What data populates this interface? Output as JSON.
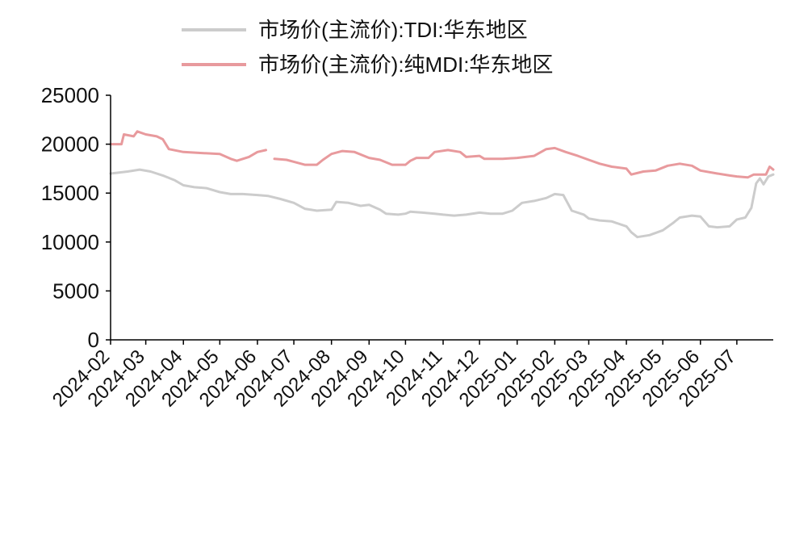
{
  "chart_data": {
    "type": "line",
    "title": "",
    "xlabel": "",
    "ylabel": "",
    "ylim": [
      0,
      25000
    ],
    "yticks": [
      0,
      5000,
      10000,
      15000,
      20000,
      25000
    ],
    "xlim": [
      "2024-02-01",
      "2025-07-31"
    ],
    "xticks": [
      "2024-02",
      "2024-03",
      "2024-04",
      "2024-05",
      "2024-06",
      "2024-07",
      "2024-08",
      "2024-09",
      "2024-10",
      "2024-11",
      "2024-12",
      "2025-01",
      "2025-02",
      "2025-03",
      "2025-04",
      "2025-05",
      "2025-06",
      "2025-07"
    ],
    "grid": false,
    "legend_position": "top-center",
    "series": [
      {
        "name": "市场价(主流价):TDI:华东地区",
        "color": "#cccccc",
        "points": [
          [
            "2024-02-01",
            17000
          ],
          [
            "2024-02-15",
            17200
          ],
          [
            "2024-02-25",
            17400
          ],
          [
            "2024-03-05",
            17200
          ],
          [
            "2024-03-15",
            16800
          ],
          [
            "2024-03-25",
            16300
          ],
          [
            "2024-04-01",
            15800
          ],
          [
            "2024-04-10",
            15600
          ],
          [
            "2024-04-20",
            15500
          ],
          [
            "2024-05-01",
            15100
          ],
          [
            "2024-05-10",
            14900
          ],
          [
            "2024-05-20",
            14900
          ],
          [
            "2024-06-01",
            14800
          ],
          [
            "2024-06-10",
            14700
          ],
          [
            "2024-06-20",
            14400
          ],
          [
            "2024-07-01",
            14000
          ],
          [
            "2024-07-10",
            13400
          ],
          [
            "2024-07-20",
            13200
          ],
          [
            "2024-08-01",
            13300
          ],
          [
            "2024-08-05",
            14100
          ],
          [
            "2024-08-15",
            14000
          ],
          [
            "2024-08-25",
            13700
          ],
          [
            "2024-09-01",
            13800
          ],
          [
            "2024-09-10",
            13300
          ],
          [
            "2024-09-15",
            12900
          ],
          [
            "2024-09-25",
            12800
          ],
          [
            "2024-10-01",
            12900
          ],
          [
            "2024-10-05",
            13100
          ],
          [
            "2024-10-15",
            13000
          ],
          [
            "2024-10-25",
            12900
          ],
          [
            "2024-11-01",
            12800
          ],
          [
            "2024-11-10",
            12700
          ],
          [
            "2024-11-20",
            12800
          ],
          [
            "2024-12-01",
            13000
          ],
          [
            "2024-12-10",
            12900
          ],
          [
            "2024-12-20",
            12900
          ],
          [
            "2024-12-28",
            13200
          ],
          [
            "2025-01-05",
            14000
          ],
          [
            "2025-01-15",
            14200
          ],
          [
            "2025-01-25",
            14500
          ],
          [
            "2025-02-01",
            14900
          ],
          [
            "2025-02-08",
            14800
          ],
          [
            "2025-02-15",
            13200
          ],
          [
            "2025-02-25",
            12800
          ],
          [
            "2025-03-01",
            12400
          ],
          [
            "2025-03-10",
            12200
          ],
          [
            "2025-03-20",
            12100
          ],
          [
            "2025-04-01",
            11600
          ],
          [
            "2025-04-05",
            11000
          ],
          [
            "2025-04-10",
            10500
          ],
          [
            "2025-04-20",
            10700
          ],
          [
            "2025-05-01",
            11200
          ],
          [
            "2025-05-10",
            12000
          ],
          [
            "2025-05-15",
            12500
          ],
          [
            "2025-05-25",
            12700
          ],
          [
            "2025-06-01",
            12600
          ],
          [
            "2025-06-08",
            11600
          ],
          [
            "2025-06-15",
            11500
          ],
          [
            "2025-06-25",
            11600
          ],
          [
            "2025-07-01",
            12300
          ],
          [
            "2025-07-08",
            12500
          ],
          [
            "2025-07-13",
            13500
          ],
          [
            "2025-07-17",
            16000
          ],
          [
            "2025-07-20",
            16500
          ],
          [
            "2025-07-23",
            15900
          ],
          [
            "2025-07-27",
            16700
          ],
          [
            "2025-07-31",
            16900
          ]
        ]
      },
      {
        "name": "市场价(主流价):纯MDI:华东地区",
        "color": "#e89a9d",
        "points": [
          [
            "2024-02-01",
            20000
          ],
          [
            "2024-02-10",
            20000
          ],
          [
            "2024-02-12",
            21000
          ],
          [
            "2024-02-20",
            20800
          ],
          [
            "2024-02-23",
            21300
          ],
          [
            "2024-03-01",
            21000
          ],
          [
            "2024-03-10",
            20800
          ],
          [
            "2024-03-15",
            20500
          ],
          [
            "2024-03-20",
            19500
          ],
          [
            "2024-04-01",
            19200
          ],
          [
            "2024-04-15",
            19100
          ],
          [
            "2024-05-01",
            19000
          ],
          [
            "2024-05-10",
            18500
          ],
          [
            "2024-05-15",
            18300
          ],
          [
            "2024-05-25",
            18700
          ],
          [
            "2024-06-01",
            19200
          ],
          [
            "2024-06-08",
            19400
          ],
          [
            "2024-06-12",
            null
          ],
          [
            "2024-06-15",
            18500
          ],
          [
            "2024-06-25",
            18400
          ],
          [
            "2024-07-01",
            18200
          ],
          [
            "2024-07-10",
            17900
          ],
          [
            "2024-07-20",
            17900
          ],
          [
            "2024-07-25",
            18400
          ],
          [
            "2024-08-01",
            19000
          ],
          [
            "2024-08-10",
            19300
          ],
          [
            "2024-08-20",
            19200
          ],
          [
            "2024-09-01",
            18600
          ],
          [
            "2024-09-10",
            18400
          ],
          [
            "2024-09-20",
            17900
          ],
          [
            "2024-10-01",
            17900
          ],
          [
            "2024-10-05",
            18300
          ],
          [
            "2024-10-10",
            18600
          ],
          [
            "2024-10-20",
            18600
          ],
          [
            "2024-10-25",
            19200
          ],
          [
            "2024-11-05",
            19400
          ],
          [
            "2024-11-15",
            19200
          ],
          [
            "2024-11-20",
            18700
          ],
          [
            "2024-12-01",
            18800
          ],
          [
            "2024-12-05",
            18500
          ],
          [
            "2024-12-20",
            18500
          ],
          [
            "2025-01-01",
            18600
          ],
          [
            "2025-01-15",
            18800
          ],
          [
            "2025-01-25",
            19500
          ],
          [
            "2025-02-01",
            19600
          ],
          [
            "2025-02-10",
            19200
          ],
          [
            "2025-02-20",
            18800
          ],
          [
            "2025-03-01",
            18400
          ],
          [
            "2025-03-10",
            18000
          ],
          [
            "2025-03-20",
            17700
          ],
          [
            "2025-04-01",
            17500
          ],
          [
            "2025-04-05",
            16900
          ],
          [
            "2025-04-15",
            17200
          ],
          [
            "2025-04-25",
            17300
          ],
          [
            "2025-05-05",
            17800
          ],
          [
            "2025-05-15",
            18000
          ],
          [
            "2025-05-25",
            17800
          ],
          [
            "2025-06-01",
            17300
          ],
          [
            "2025-06-15",
            17000
          ],
          [
            "2025-06-25",
            16800
          ],
          [
            "2025-07-01",
            16700
          ],
          [
            "2025-07-10",
            16600
          ],
          [
            "2025-07-15",
            16900
          ],
          [
            "2025-07-25",
            16900
          ],
          [
            "2025-07-28",
            17700
          ],
          [
            "2025-07-31",
            17400
          ]
        ]
      }
    ]
  }
}
